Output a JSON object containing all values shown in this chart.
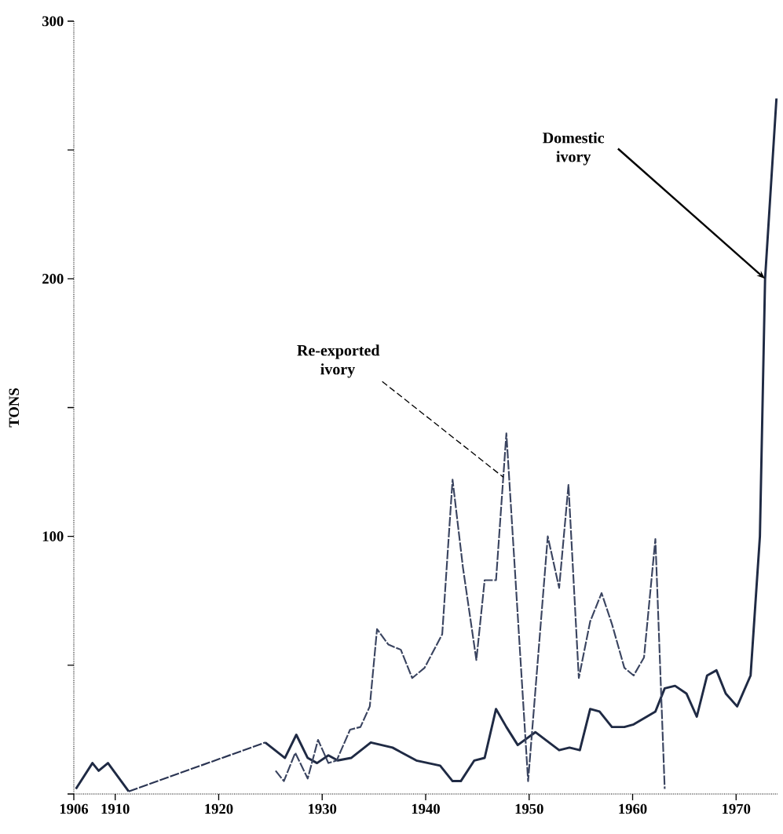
{
  "chart_data": {
    "type": "line",
    "ylabel": "TONS",
    "xlim": [
      1906,
      1974
    ],
    "xticks": [
      1906,
      1910,
      1920,
      1930,
      1940,
      1950,
      1960,
      1970
    ],
    "ylim": [
      0,
      300
    ],
    "yticks": [
      {
        "value": 0,
        "label": null
      },
      {
        "value": 50,
        "label": null
      },
      100,
      {
        "value": 150,
        "label": null
      },
      200,
      {
        "value": 250,
        "label": null
      },
      300
    ],
    "series": [
      {
        "color": "#1f2a44",
        "line_style": "solid",
        "x": [
          1906.2,
          1907.8,
          1908.4,
          1909.3,
          1911.3,
          1918,
          1924.5,
          1926.4,
          1927.5,
          1928.6,
          1929.5,
          1930.6,
          1931.5,
          1932.8,
          1934.7,
          1936.8,
          1939.1,
          1941.4,
          1942.6,
          1943.4,
          1944.7,
          1945.7,
          1946.8,
          1947.8,
          1948.9,
          1950.6,
          1952.9,
          1953.9,
          1954.9,
          1955.9,
          1956.8,
          1958,
          1959.2,
          1960.1,
          1962.2,
          1963.1,
          1964.1,
          1965.2,
          1966.2,
          1967.2,
          1968.1,
          1969,
          1970.1,
          1971.4,
          1972.3,
          1972.8,
          1973.9
        ],
        "values": [
          2,
          12,
          9,
          12,
          1,
          null,
          20,
          14,
          23,
          14,
          12,
          15,
          13,
          14,
          20,
          18,
          13,
          11,
          5,
          5,
          13,
          14,
          33,
          26,
          19,
          24,
          17,
          18,
          17,
          33,
          32,
          26,
          26,
          27,
          32,
          41,
          42,
          39,
          30,
          46,
          48,
          39,
          34,
          46,
          100,
          200,
          270
        ]
      },
      {
        "color": "#2a3452",
        "line_style": "dashed",
        "x": [
          1911.3,
          1924.5
        ],
        "values": [
          1,
          20
        ]
      },
      {
        "color": "#3a4460",
        "line_style": "dashed",
        "x": [
          1925.5,
          1926.3,
          1927.4,
          1928.6,
          1929.6,
          1930.6,
          1931.4,
          1932.7,
          1933.7,
          1934.6,
          1935.3,
          1936.4,
          1937.6,
          1938.7,
          1939.9,
          1941.6,
          1942.6,
          1943.6,
          1944.9,
          1945.7,
          1946.8,
          1947.8,
          1949.9,
          1951.8,
          1952.9,
          1953.8,
          1954.8,
          1955.9,
          1957,
          1958,
          1959.2,
          1960.1,
          1961.1,
          1962.2,
          1963.1
        ],
        "values": [
          9,
          5,
          16,
          6,
          21,
          12,
          13,
          25,
          26,
          34,
          64,
          58,
          56,
          45,
          49,
          62,
          122,
          88,
          52,
          83,
          83,
          140,
          5,
          100,
          80,
          120,
          45,
          67,
          78,
          66,
          49,
          46,
          53,
          99,
          2
        ]
      }
    ],
    "annotations": [
      {
        "text": "Re-exported ivory",
        "x": 1947.5,
        "y": 123
      },
      {
        "text": "Domestic ivory",
        "x": 1972.8,
        "y": 200
      }
    ]
  }
}
